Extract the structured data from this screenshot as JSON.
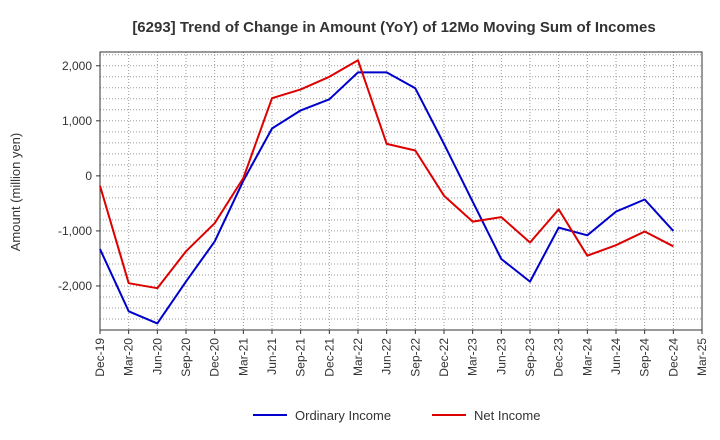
{
  "chart_data": {
    "type": "line",
    "title": "[6293]  Trend of Change in Amount (YoY) of 12Mo Moving Sum of Incomes",
    "xlabel": "",
    "ylabel": "Amount (million yen)",
    "categories": [
      "Dec-19",
      "Mar-20",
      "Jun-20",
      "Sep-20",
      "Dec-20",
      "Mar-21",
      "Jun-21",
      "Sep-21",
      "Dec-21",
      "Mar-22",
      "Jun-22",
      "Sep-22",
      "Dec-22",
      "Mar-23",
      "Jun-23",
      "Sep-23",
      "Dec-23",
      "Mar-24",
      "Jun-24",
      "Sep-24",
      "Dec-24",
      "Mar-25"
    ],
    "ylim": [
      -2800,
      2250
    ],
    "yticks": [
      2000,
      1000,
      0,
      -1000,
      -2000
    ],
    "ytick_labels": [
      "2,000",
      "1,000",
      "0",
      "-1,000",
      "-2,000"
    ],
    "grid": true,
    "legend_position": "bottom",
    "series": [
      {
        "name": "Ordinary Income",
        "color": "#0000cc",
        "values": [
          -1330,
          -2460,
          -2680,
          -1920,
          -1190,
          -90,
          860,
          1190,
          1390,
          1880,
          1880,
          1590,
          580,
          -470,
          -1510,
          -1920,
          -940,
          -1080,
          -650,
          -430,
          -1000,
          null
        ]
      },
      {
        "name": "Net Income",
        "color": "#dd0000",
        "values": [
          -180,
          -1950,
          -2040,
          -1370,
          -860,
          -40,
          1410,
          1570,
          1800,
          2100,
          580,
          460,
          -360,
          -830,
          -750,
          -1210,
          -610,
          -1450,
          -1260,
          -1010,
          -1280,
          null
        ]
      }
    ]
  }
}
